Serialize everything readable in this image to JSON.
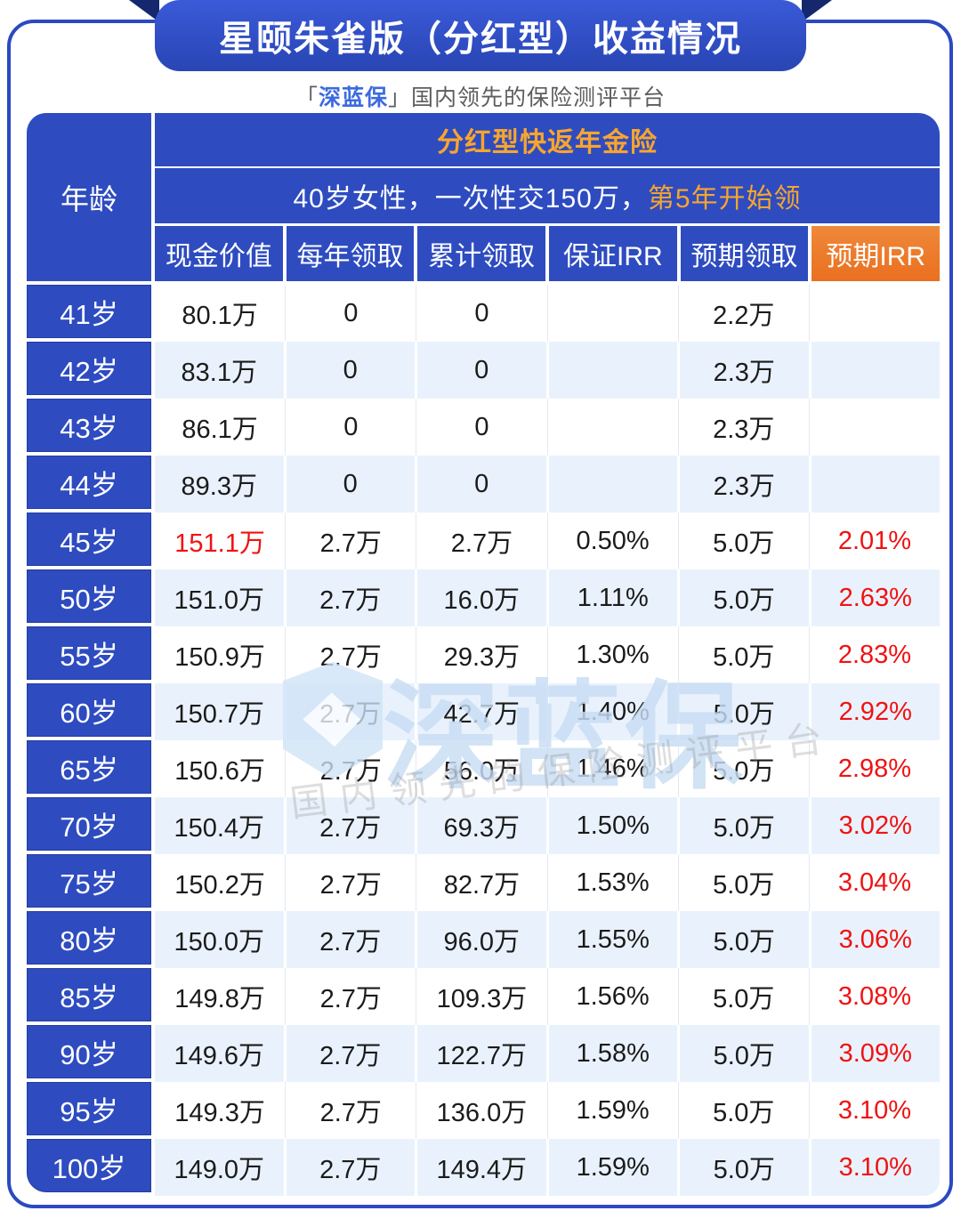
{
  "banner": {
    "title": "星颐朱雀版（分红型）收益情况"
  },
  "subtitle": {
    "prefix": "「",
    "brand": "深蓝保",
    "suffix": "」",
    "tagline": "国内领先的保险测评平台"
  },
  "table_header": {
    "product": "分红型快返年金险",
    "condition_main": "40岁女性，一次性交150万，",
    "condition_highlight": "第5年开始领"
  },
  "chart_data": {
    "type": "table",
    "title": "星颐朱雀版（分红型）收益情况",
    "group_header": "分红型快返年金险",
    "condition": "40岁女性，一次性交150万，第5年开始领",
    "columns": [
      "年龄",
      "现金价值",
      "每年领取",
      "累计领取",
      "保证IRR",
      "预期领取",
      "预期IRR"
    ],
    "rows": [
      {
        "cells": [
          "41岁",
          "80.1万",
          "0",
          "0",
          "",
          "2.2万",
          ""
        ],
        "red": []
      },
      {
        "cells": [
          "42岁",
          "83.1万",
          "0",
          "0",
          "",
          "2.3万",
          ""
        ],
        "red": []
      },
      {
        "cells": [
          "43岁",
          "86.1万",
          "0",
          "0",
          "",
          "2.3万",
          ""
        ],
        "red": []
      },
      {
        "cells": [
          "44岁",
          "89.3万",
          "0",
          "0",
          "",
          "2.3万",
          ""
        ],
        "red": []
      },
      {
        "cells": [
          "45岁",
          "151.1万",
          "2.7万",
          "2.7万",
          "0.50%",
          "5.0万",
          "2.01%"
        ],
        "red": [
          1,
          6
        ]
      },
      {
        "cells": [
          "50岁",
          "151.0万",
          "2.7万",
          "16.0万",
          "1.11%",
          "5.0万",
          "2.63%"
        ],
        "red": [
          6
        ]
      },
      {
        "cells": [
          "55岁",
          "150.9万",
          "2.7万",
          "29.3万",
          "1.30%",
          "5.0万",
          "2.83%"
        ],
        "red": [
          6
        ]
      },
      {
        "cells": [
          "60岁",
          "150.7万",
          "2.7万",
          "42.7万",
          "1.40%",
          "5.0万",
          "2.92%"
        ],
        "red": [
          6
        ]
      },
      {
        "cells": [
          "65岁",
          "150.6万",
          "2.7万",
          "56.0万",
          "1.46%",
          "5.0万",
          "2.98%"
        ],
        "red": [
          6
        ]
      },
      {
        "cells": [
          "70岁",
          "150.4万",
          "2.7万",
          "69.3万",
          "1.50%",
          "5.0万",
          "3.02%"
        ],
        "red": [
          6
        ]
      },
      {
        "cells": [
          "75岁",
          "150.2万",
          "2.7万",
          "82.7万",
          "1.53%",
          "5.0万",
          "3.04%"
        ],
        "red": [
          6
        ]
      },
      {
        "cells": [
          "80岁",
          "150.0万",
          "2.7万",
          "96.0万",
          "1.55%",
          "5.0万",
          "3.06%"
        ],
        "red": [
          6
        ]
      },
      {
        "cells": [
          "85岁",
          "149.8万",
          "2.7万",
          "109.3万",
          "1.56%",
          "5.0万",
          "3.08%"
        ],
        "red": [
          6
        ]
      },
      {
        "cells": [
          "90岁",
          "149.6万",
          "2.7万",
          "122.7万",
          "1.58%",
          "5.0万",
          "3.09%"
        ],
        "red": [
          6
        ]
      },
      {
        "cells": [
          "95岁",
          "149.3万",
          "2.7万",
          "136.0万",
          "1.59%",
          "5.0万",
          "3.10%"
        ],
        "red": [
          6
        ]
      },
      {
        "cells": [
          "100岁",
          "149.0万",
          "2.7万",
          "149.4万",
          "1.59%",
          "5.0万",
          "3.10%"
        ],
        "red": [
          6
        ]
      }
    ]
  },
  "watermark": {
    "logo": "shield-logo",
    "brand": "深蓝保",
    "tagline": "国内领先的保险测评平台"
  },
  "colors": {
    "primary_blue": "#2e4cc0",
    "banner_blue_top": "#3a5ad8",
    "dark_fold_navy": "#15286e",
    "accent_orange_header_bg": "#ed7c2f",
    "accent_gold_text": "#f8a52d",
    "highlight_red": "#f01212",
    "row_alt_blue": "#e9f2fc",
    "text_dark": "#1b1b1b",
    "subtitle_gray": "#5d5d5d",
    "brand_blue": "#3c6ae0",
    "watermark_blue": "#c7ddf4"
  }
}
